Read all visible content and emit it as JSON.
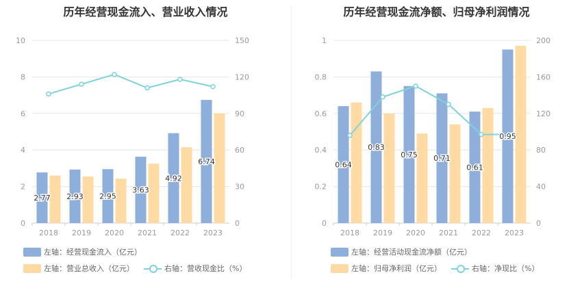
{
  "colors": {
    "bar1": "#8eaedc",
    "bar2": "#ffdba3",
    "line": "#7dd3dd",
    "grid": "#e6e6e6",
    "axis_text": "#999999"
  },
  "chart_data": [
    {
      "type": "bar",
      "title": "历年经营现金流入、营业收入情况",
      "categories": [
        "2018",
        "2019",
        "2020",
        "2021",
        "2022",
        "2023"
      ],
      "y_left": {
        "lim": [
          0,
          10
        ],
        "ticks": [
          "0",
          "2",
          "4",
          "6",
          "8",
          "10"
        ]
      },
      "y_right": {
        "lim": [
          0,
          150
        ],
        "ticks": [
          "0",
          "30",
          "60",
          "90",
          "120",
          "150"
        ]
      },
      "series": [
        {
          "name": "左轴：经营现金流入（亿元）",
          "type": "bar",
          "axis": "left",
          "color": "#8eaedc",
          "values": [
            2.77,
            2.93,
            2.95,
            3.63,
            4.92,
            6.74
          ],
          "labels": [
            "2.77",
            "2.93",
            "2.95",
            "3.63",
            "4.92",
            "6.74"
          ]
        },
        {
          "name": "左轴：营业总收入（亿元）",
          "type": "bar",
          "axis": "left",
          "color": "#ffdba3",
          "values": [
            2.6,
            2.55,
            2.43,
            3.25,
            4.15,
            6.0
          ]
        },
        {
          "name": "右轴：营收现金比（%）",
          "type": "line",
          "axis": "right",
          "color": "#7dd3dd",
          "values": [
            106,
            114,
            122,
            111,
            118,
            112
          ]
        }
      ],
      "grid": true,
      "legend": "bottom"
    },
    {
      "type": "bar",
      "title": "历年经营现金流净额、归母净利润情况",
      "categories": [
        "2018",
        "2019",
        "2020",
        "2021",
        "2022",
        "2023"
      ],
      "y_left": {
        "lim": [
          0,
          1
        ],
        "ticks": [
          "0",
          "0.2",
          "0.4",
          "0.6",
          "0.8",
          "1"
        ]
      },
      "y_right": {
        "lim": [
          0,
          200
        ],
        "ticks": [
          "0",
          "40",
          "80",
          "120",
          "160",
          "200"
        ]
      },
      "series": [
        {
          "name": "左轴：经营活动现金流净额（亿元）",
          "type": "bar",
          "axis": "left",
          "color": "#8eaedc",
          "values": [
            0.64,
            0.83,
            0.75,
            0.71,
            0.61,
            0.95
          ],
          "labels": [
            "0.64",
            "0.83",
            "0.75",
            "0.71",
            "0.61",
            "0.95"
          ]
        },
        {
          "name": "左轴：归母净利润（亿元）",
          "type": "bar",
          "axis": "left",
          "color": "#ffdba3",
          "values": [
            0.66,
            0.6,
            0.49,
            0.54,
            0.63,
            0.97
          ]
        },
        {
          "name": "右轴：净现比（%）",
          "type": "line",
          "axis": "right",
          "color": "#7dd3dd",
          "values": [
            96,
            138,
            150,
            130,
            97,
            97
          ]
        }
      ],
      "grid": true,
      "legend": "bottom"
    }
  ]
}
